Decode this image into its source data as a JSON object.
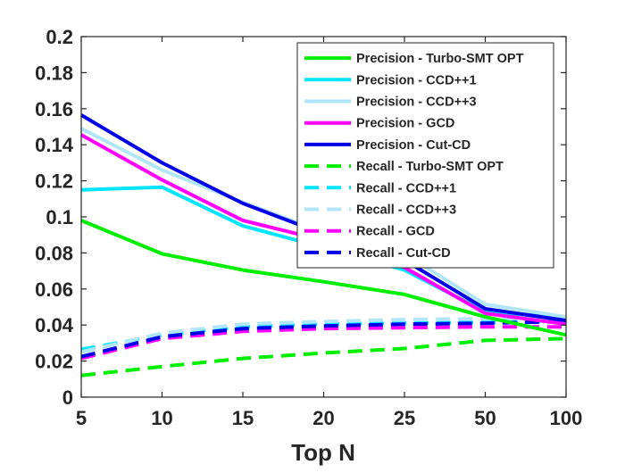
{
  "chart_data": {
    "type": "line",
    "title": "",
    "xlabel": "Top N",
    "ylabel": "",
    "categories": [
      "5",
      "10",
      "15",
      "20",
      "25",
      "50",
      "100"
    ],
    "ylim": [
      0,
      0.2
    ],
    "yticks": [
      "0",
      "0.02",
      "0.04",
      "0.06",
      "0.08",
      "0.1",
      "0.12",
      "0.14",
      "0.16",
      "0.18",
      "0.2"
    ],
    "grid": false,
    "legend_position": "top-right",
    "series": [
      {
        "name": "Precision - Turbo-SMT OPT",
        "color": "#00ee00",
        "style": "solid",
        "values": [
          0.098,
          0.0795,
          0.0705,
          0.064,
          0.057,
          0.0445,
          0.0345
        ]
      },
      {
        "name": "Precision - CCD++1",
        "color": "#00e5ff",
        "style": "solid",
        "values": [
          0.115,
          0.1165,
          0.095,
          0.083,
          0.0705,
          0.0475,
          0.044
        ]
      },
      {
        "name": "Precision - CCD++3",
        "color": "#b0e6f7",
        "style": "solid",
        "values": [
          0.149,
          0.126,
          0.108,
          0.0915,
          0.0795,
          0.0515,
          0.0445
        ]
      },
      {
        "name": "Precision - GCD",
        "color": "#ff00ff",
        "style": "solid",
        "values": [
          0.1455,
          0.1205,
          0.098,
          0.087,
          0.072,
          0.0465,
          0.0405
        ]
      },
      {
        "name": "Precision - Cut-CD",
        "color": "#0000e6",
        "style": "solid",
        "values": [
          0.1565,
          0.13,
          0.1075,
          0.0905,
          0.076,
          0.049,
          0.0425
        ]
      },
      {
        "name": "Recall - Turbo-SMT OPT",
        "color": "#00ee00",
        "style": "dashed",
        "values": [
          0.012,
          0.017,
          0.0215,
          0.0245,
          0.027,
          0.0315,
          0.0325
        ]
      },
      {
        "name": "Recall - CCD++1",
        "color": "#00e5ff",
        "style": "dashed",
        "values": [
          0.0265,
          0.0345,
          0.039,
          0.0405,
          0.041,
          0.0415,
          0.042
        ]
      },
      {
        "name": "Recall - CCD++3",
        "color": "#b0e6f7",
        "style": "dashed",
        "values": [
          0.025,
          0.0355,
          0.0405,
          0.042,
          0.043,
          0.0435,
          0.044
        ]
      },
      {
        "name": "Recall - GCD",
        "color": "#ff00ff",
        "style": "dashed",
        "values": [
          0.0215,
          0.0325,
          0.0365,
          0.038,
          0.0385,
          0.039,
          0.039
        ]
      },
      {
        "name": "Recall - Cut-CD",
        "color": "#0000e6",
        "style": "dashed",
        "values": [
          0.0225,
          0.0335,
          0.038,
          0.0395,
          0.0405,
          0.041,
          0.042
        ]
      }
    ]
  }
}
